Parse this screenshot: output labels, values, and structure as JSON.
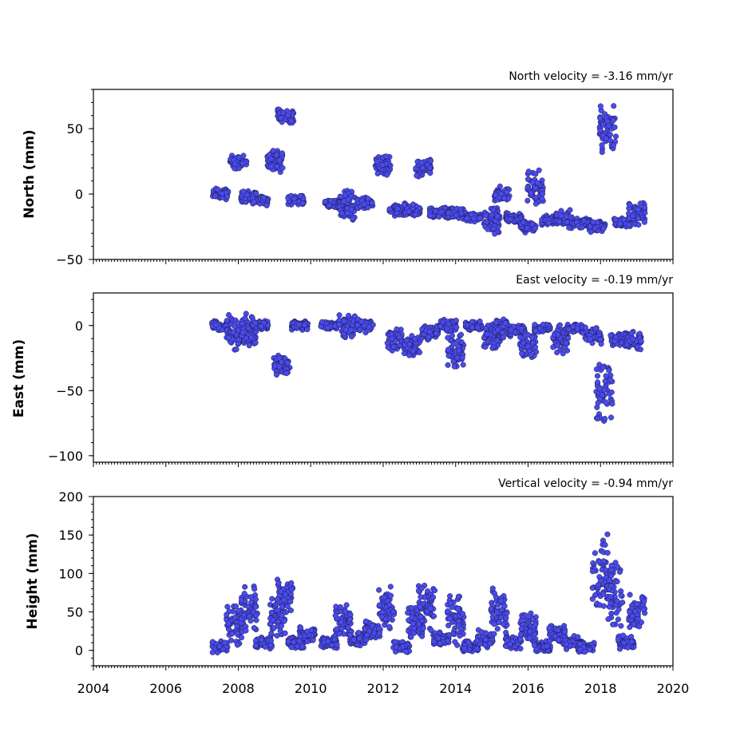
{
  "chart_data": [
    {
      "type": "scatter",
      "title": "North velocity = -3.16 mm/yr",
      "ylabel": "North (mm)",
      "xlim": [
        2004,
        2020
      ],
      "ylim": [
        -50,
        80
      ],
      "yticks": [
        {
          "value": -50,
          "label": "−50"
        },
        {
          "value": 0,
          "label": "0"
        },
        {
          "value": 50,
          "label": "50"
        }
      ],
      "points": "2007.5,0,4.5 2008.0,25,6 2008.3,-2,5 2008.6,-5,4 2009.0,25,10 2009.3,60,6 2009.6,-5,4 2010.6,-7,4 2011.0,-10,15 2011.5,-7,5 2012.0,22,8 2012.4,-12,5 2012.8,-12,5 2013.1,20,8 2013.5,-14,4 2014.0,-15,5 2014.5,-18,4 2015.0,-20,12 2015.3,0,6 2015.6,-18,4 2016.0,-25,5 2016.2,5,15 2016.6,-20,4 2017.0,-20,8 2017.5,-22,4 2017.9,-25,5 2018.2,50,20 2018.6,-22,4 2019.0,-15,10",
      "color": "#4a4aee"
    },
    {
      "type": "scatter",
      "title": "East velocity = -0.19 mm/yr",
      "ylabel": "East (mm)",
      "xlim": [
        2004,
        2020
      ],
      "ylim": [
        -105,
        25
      ],
      "yticks": [
        {
          "value": -100,
          "label": "−100"
        },
        {
          "value": -50,
          "label": "−50"
        },
        {
          "value": 0,
          "label": "0"
        }
      ],
      "points": "2007.5,0,4 2007.9,-5,15 2008.3,-5,15 2008.6,0,4 2009.2,-30,8 2009.7,0,4 2010.5,0,3 2011.0,0,10 2011.5,0,6 2012.3,-10,12 2012.8,-15,10 2013.3,-5,6 2013.8,0,5 2014.0,-20,15 2014.5,0,4 2015.0,-10,12 2015.3,-2,8 2015.7,-3,4 2016.0,-15,10 2016.4,-2,4 2016.9,-10,12 2017.3,-2,4 2017.8,-8,8 2018.1,-50,25 2018.5,-10,6 2018.9,-12,8",
      "color": "#4a4aee"
    },
    {
      "type": "scatter",
      "title": "Vertical velocity = -0.94 mm/yr",
      "ylabel": "Height (mm)",
      "xlim": [
        2004,
        2020
      ],
      "ylim": [
        -20,
        200
      ],
      "yticks": [
        {
          "value": 0,
          "label": "0"
        },
        {
          "value": 50,
          "label": "50"
        },
        {
          "value": 100,
          "label": "100"
        },
        {
          "value": 150,
          "label": "150"
        },
        {
          "value": 200,
          "label": "200"
        }
      ],
      "points": "2007.5,5,8 2007.9,35,30 2008.3,50,35 2008.7,10,8 2009.1,40,30 2009.3,70,25 2009.6,10,8 2009.9,20,12 2010.5,10,8 2010.9,40,25 2011.3,15,12 2011.7,25,15 2012.1,55,30 2012.5,5,8 2012.9,35,25 2013.2,60,35 2013.6,15,10 2014.0,40,35 2014.4,5,8 2014.8,15,12 2015.2,50,35 2015.6,10,10 2016.0,30,25 2016.4,5,8 2016.8,20,15 2017.2,10,10 2017.6,5,8 2018.0,100,55 2018.4,80,50 2018.7,10,10 2019.0,50,25",
      "color": "#4a4aee"
    }
  ],
  "xaxis": {
    "ticks": [
      {
        "value": 2004,
        "label": "2004"
      },
      {
        "value": 2006,
        "label": "2006"
      },
      {
        "value": 2008,
        "label": "2008"
      },
      {
        "value": 2010,
        "label": "2010"
      },
      {
        "value": 2012,
        "label": "2012"
      },
      {
        "value": 2014,
        "label": "2014"
      },
      {
        "value": 2016,
        "label": "2016"
      },
      {
        "value": 2018,
        "label": "2018"
      },
      {
        "value": 2020,
        "label": "2020"
      }
    ]
  }
}
